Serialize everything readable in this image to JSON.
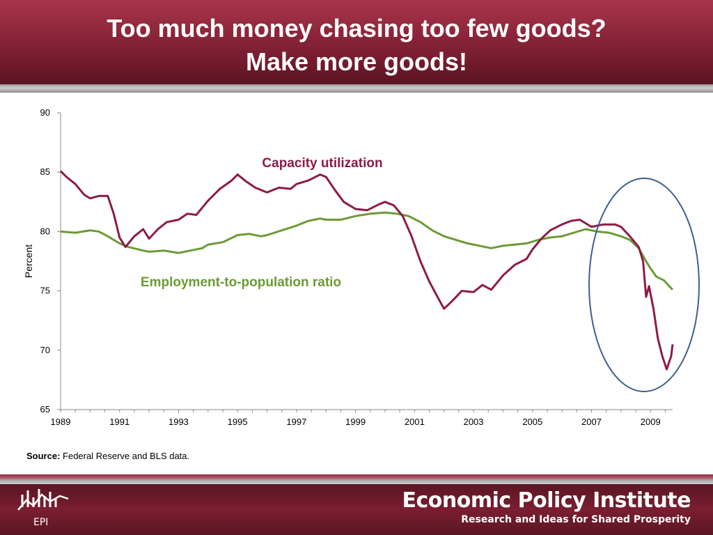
{
  "slide": {
    "title_line1": "Too much money chasing too few goods?",
    "title_line2": "Make more goods!",
    "source_label": "Source:",
    "source_text": "Federal Reserve and BLS data.",
    "footer": {
      "logo_text": "EPI",
      "org_name": "Economic Policy Institute",
      "tagline": "Research and Ideas for Shared Prosperity"
    },
    "colors": {
      "header": "#8a2438",
      "capacity": "#8e1a47",
      "employment": "#6c9a35",
      "ellipse": "#3c5f8f"
    }
  },
  "chart_data": {
    "type": "line",
    "title": "",
    "xlabel": "",
    "ylabel": "Percent",
    "xlim": [
      1989,
      2009.75
    ],
    "ylim": [
      65,
      90
    ],
    "yticks": [
      65,
      70,
      75,
      80,
      85,
      90
    ],
    "xticks": [
      1989,
      1991,
      1993,
      1995,
      1997,
      1999,
      2001,
      2003,
      2005,
      2007,
      2009
    ],
    "grid": false,
    "annotations": [
      "Capacity utilization",
      "Employment-to-population ratio"
    ],
    "highlight": "ellipse around 2008-2009",
    "series": [
      {
        "name": "Capacity utilization",
        "color": "#8e1a47",
        "points": [
          [
            1989.0,
            85.1
          ],
          [
            1989.2,
            84.6
          ],
          [
            1989.5,
            84.0
          ],
          [
            1989.8,
            83.1
          ],
          [
            1990.0,
            82.8
          ],
          [
            1990.3,
            83.0
          ],
          [
            1990.6,
            83.0
          ],
          [
            1990.8,
            81.5
          ],
          [
            1991.0,
            79.5
          ],
          [
            1991.2,
            78.7
          ],
          [
            1991.5,
            79.6
          ],
          [
            1991.8,
            80.2
          ],
          [
            1992.0,
            79.4
          ],
          [
            1992.3,
            80.2
          ],
          [
            1992.6,
            80.8
          ],
          [
            1993.0,
            81.0
          ],
          [
            1993.3,
            81.5
          ],
          [
            1993.6,
            81.4
          ],
          [
            1994.0,
            82.6
          ],
          [
            1994.4,
            83.6
          ],
          [
            1994.8,
            84.3
          ],
          [
            1995.0,
            84.8
          ],
          [
            1995.3,
            84.2
          ],
          [
            1995.6,
            83.7
          ],
          [
            1996.0,
            83.3
          ],
          [
            1996.4,
            83.7
          ],
          [
            1996.8,
            83.6
          ],
          [
            1997.0,
            84.0
          ],
          [
            1997.4,
            84.3
          ],
          [
            1997.8,
            84.8
          ],
          [
            1998.0,
            84.6
          ],
          [
            1998.3,
            83.5
          ],
          [
            1998.6,
            82.5
          ],
          [
            1999.0,
            81.9
          ],
          [
            1999.4,
            81.8
          ],
          [
            1999.8,
            82.3
          ],
          [
            2000.0,
            82.5
          ],
          [
            2000.3,
            82.2
          ],
          [
            2000.6,
            81.3
          ],
          [
            2000.9,
            79.6
          ],
          [
            2001.2,
            77.5
          ],
          [
            2001.5,
            75.8
          ],
          [
            2001.8,
            74.4
          ],
          [
            2002.0,
            73.5
          ],
          [
            2002.3,
            74.2
          ],
          [
            2002.6,
            75.0
          ],
          [
            2003.0,
            74.9
          ],
          [
            2003.3,
            75.5
          ],
          [
            2003.6,
            75.1
          ],
          [
            2004.0,
            76.3
          ],
          [
            2004.4,
            77.2
          ],
          [
            2004.8,
            77.7
          ],
          [
            2005.0,
            78.5
          ],
          [
            2005.3,
            79.4
          ],
          [
            2005.6,
            80.1
          ],
          [
            2006.0,
            80.6
          ],
          [
            2006.3,
            80.9
          ],
          [
            2006.6,
            81.0
          ],
          [
            2007.0,
            80.4
          ],
          [
            2007.4,
            80.6
          ],
          [
            2007.8,
            80.6
          ],
          [
            2008.0,
            80.4
          ],
          [
            2008.3,
            79.6
          ],
          [
            2008.6,
            78.7
          ],
          [
            2008.75,
            77.5
          ],
          [
            2008.85,
            74.5
          ],
          [
            2008.95,
            75.4
          ],
          [
            2009.1,
            73.5
          ],
          [
            2009.25,
            71.0
          ],
          [
            2009.4,
            69.5
          ],
          [
            2009.55,
            68.4
          ],
          [
            2009.7,
            69.5
          ],
          [
            2009.75,
            70.5
          ]
        ]
      },
      {
        "name": "Employment-to-population ratio",
        "color": "#6c9a35",
        "points": [
          [
            1989.0,
            80.0
          ],
          [
            1989.5,
            79.9
          ],
          [
            1990.0,
            80.1
          ],
          [
            1990.3,
            80.0
          ],
          [
            1990.6,
            79.6
          ],
          [
            1991.0,
            79.0
          ],
          [
            1991.3,
            78.7
          ],
          [
            1991.8,
            78.4
          ],
          [
            1992.0,
            78.3
          ],
          [
            1992.5,
            78.4
          ],
          [
            1993.0,
            78.2
          ],
          [
            1993.4,
            78.4
          ],
          [
            1993.8,
            78.6
          ],
          [
            1994.0,
            78.9
          ],
          [
            1994.5,
            79.1
          ],
          [
            1995.0,
            79.7
          ],
          [
            1995.4,
            79.8
          ],
          [
            1995.8,
            79.6
          ],
          [
            1996.0,
            79.7
          ],
          [
            1996.5,
            80.1
          ],
          [
            1997.0,
            80.5
          ],
          [
            1997.4,
            80.9
          ],
          [
            1997.8,
            81.1
          ],
          [
            1998.0,
            81.0
          ],
          [
            1998.5,
            81.0
          ],
          [
            1999.0,
            81.3
          ],
          [
            1999.5,
            81.5
          ],
          [
            2000.0,
            81.6
          ],
          [
            2000.4,
            81.5
          ],
          [
            2000.8,
            81.3
          ],
          [
            2001.2,
            80.8
          ],
          [
            2001.6,
            80.1
          ],
          [
            2002.0,
            79.6
          ],
          [
            2002.4,
            79.3
          ],
          [
            2002.8,
            79.0
          ],
          [
            2003.2,
            78.8
          ],
          [
            2003.6,
            78.6
          ],
          [
            2004.0,
            78.8
          ],
          [
            2004.4,
            78.9
          ],
          [
            2004.8,
            79.0
          ],
          [
            2005.2,
            79.3
          ],
          [
            2005.6,
            79.5
          ],
          [
            2006.0,
            79.6
          ],
          [
            2006.4,
            79.9
          ],
          [
            2006.8,
            80.2
          ],
          [
            2007.2,
            80.0
          ],
          [
            2007.6,
            79.9
          ],
          [
            2008.0,
            79.6
          ],
          [
            2008.3,
            79.3
          ],
          [
            2008.6,
            78.6
          ],
          [
            2008.85,
            77.5
          ],
          [
            2009.0,
            76.9
          ],
          [
            2009.2,
            76.2
          ],
          [
            2009.45,
            75.9
          ],
          [
            2009.75,
            75.1
          ]
        ]
      }
    ]
  }
}
